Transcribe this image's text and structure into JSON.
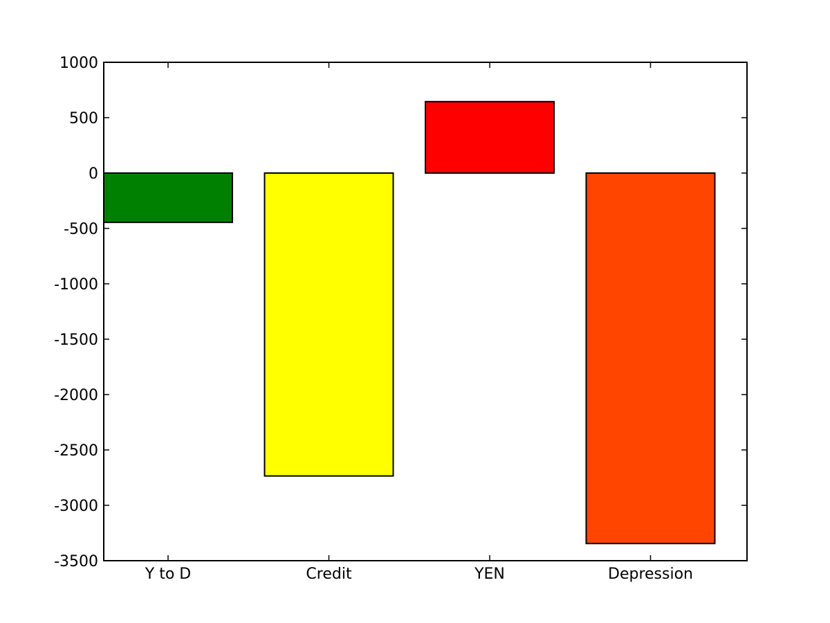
{
  "chart_data": {
    "type": "bar",
    "categories": [
      "Y to D",
      "Credit",
      "YEN",
      "Depression"
    ],
    "values": [
      -445,
      -2735,
      645,
      -3345
    ],
    "colors": [
      "#008000",
      "#ffff00",
      "#ff0000",
      "#ff4500"
    ],
    "title": "",
    "xlabel": "",
    "ylabel": "",
    "ylim": [
      -3500,
      1000
    ],
    "yticks": [
      1000,
      500,
      0,
      -500,
      -1000,
      -1500,
      -2000,
      -2500,
      -3000,
      -3500
    ],
    "ytick_labels": [
      "1000",
      "500",
      "0",
      "-500",
      "-1000",
      "-1500",
      "-2000",
      "-2500",
      "-3000",
      "-3500"
    ],
    "grid": false,
    "legend": "none"
  }
}
